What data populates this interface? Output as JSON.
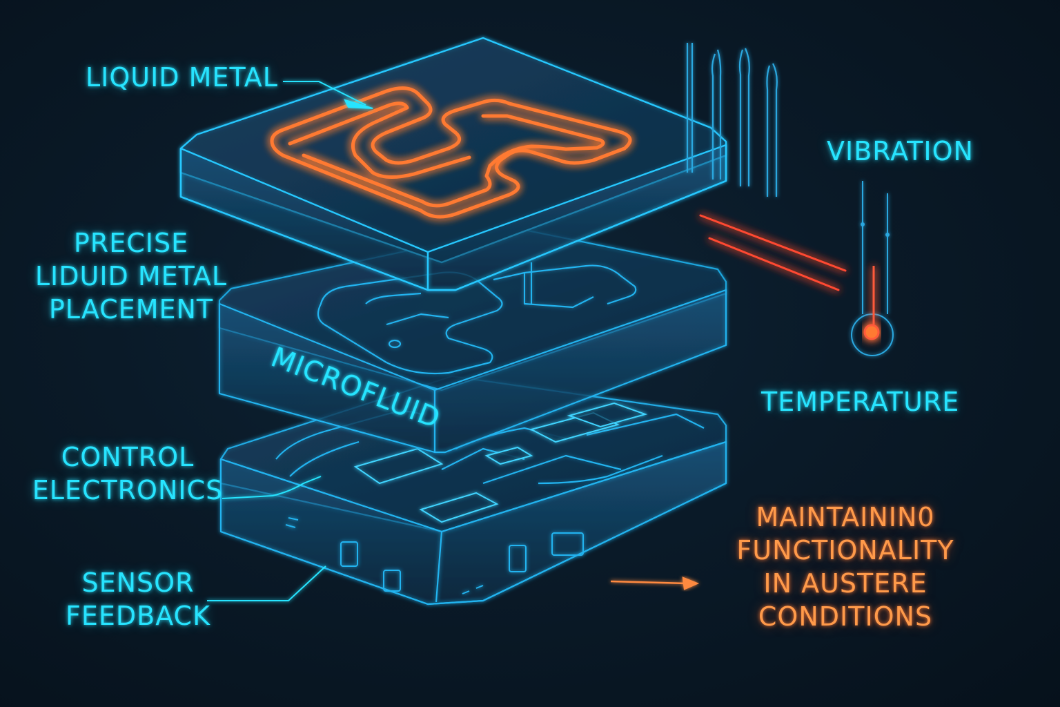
{
  "labels": {
    "liquid_metal": "LIQUID METAL",
    "precise_placement": [
      "PRECISE",
      "LIDUID METAL",
      "PLACEMENT"
    ],
    "microfluid": "MICROFLUID",
    "control_electronics": [
      "CONTROL",
      "ELECTRONICS"
    ],
    "sensor_feedback": [
      "SENSOR",
      "FEEDBACK"
    ],
    "vibration": "VIBRATION",
    "temperature": "TEMPERATURE",
    "maintaining": [
      "MAINTAININ0",
      "FUNCTIONALITY",
      "IN AUSTERE",
      "CONDITIONS"
    ]
  },
  "colors": {
    "background": "#0a1a28",
    "cyan_glow": "#27e4ff",
    "blue_layer": "#1e8fd6",
    "orange_glow": "#ff7a33",
    "orange_text": "#ff9a4a"
  }
}
